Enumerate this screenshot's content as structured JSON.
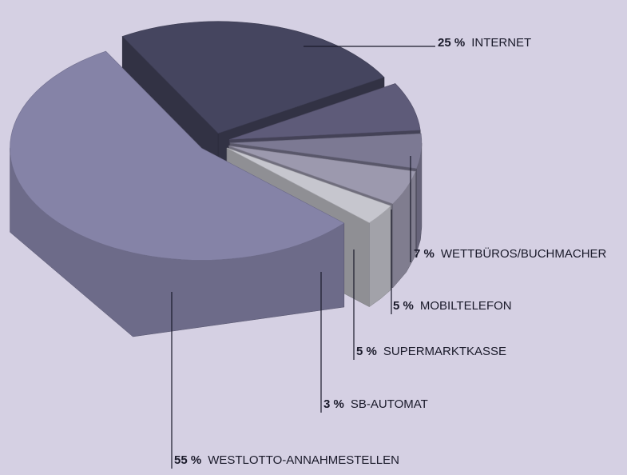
{
  "chart_data": {
    "type": "pie",
    "categories": [
      "INTERNET",
      "WETTBÜROS/BUCHMACHER",
      "MOBILTELEFON",
      "SUPERMARKTKASSE",
      "SB-AUTOMAT",
      "WESTLOTTO-ANNAHMESTELLEN"
    ],
    "values": [
      25,
      7,
      5,
      5,
      3,
      55
    ],
    "value_labels": [
      "25 %",
      "7 %",
      "5 %",
      "5 %",
      "3 %",
      "55 %"
    ],
    "colors": [
      "#45455f",
      "#5e5b79",
      "#7c7993",
      "#9c99ae",
      "#c6c6ce",
      "#8583a7"
    ]
  }
}
